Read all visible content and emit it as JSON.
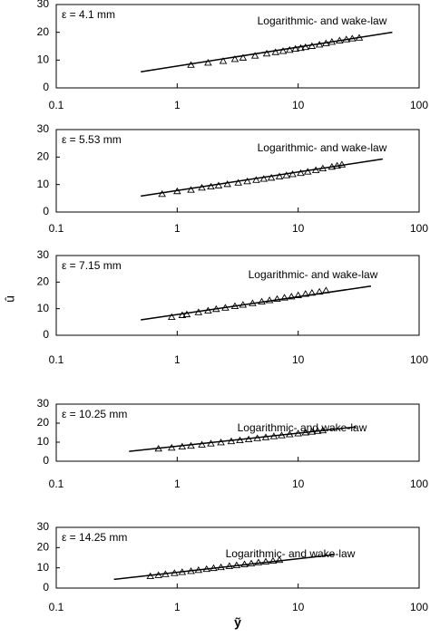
{
  "chart_data": [
    {
      "type": "scatter",
      "log_x": true,
      "xlim": [
        0.1,
        100
      ],
      "ylim": [
        0,
        30
      ],
      "xticks": [
        0.1,
        1,
        10,
        100
      ],
      "yticks": [
        0,
        10,
        20,
        30
      ],
      "label": "ε = 4.1 mm",
      "annotation": "Logarithmic- and wake-law",
      "series": [
        {
          "style": "markers",
          "marker": "triangle",
          "color": "#000000",
          "x": [
            1.3,
            1.8,
            2.4,
            3.0,
            3.5,
            4.4,
            5.5,
            6.5,
            7.5,
            8.5,
            9.5,
            10.5,
            11.5,
            13,
            15,
            17,
            19,
            22,
            25,
            28,
            32
          ],
          "values": [
            8.2,
            9.0,
            9.6,
            10.3,
            10.8,
            11.5,
            12.3,
            12.8,
            13.2,
            13.6,
            14.0,
            14.3,
            14.6,
            15.0,
            15.5,
            16.0,
            16.5,
            17.0,
            17.4,
            17.7,
            18.0
          ]
        },
        {
          "style": "line",
          "color": "#000000",
          "x": [
            0.5,
            60
          ],
          "values": [
            5.8,
            20
          ]
        }
      ]
    },
    {
      "type": "scatter",
      "log_x": true,
      "xlim": [
        0.1,
        100
      ],
      "ylim": [
        0,
        30
      ],
      "xticks": [
        0.1,
        1,
        10,
        100
      ],
      "yticks": [
        0,
        10,
        20,
        30
      ],
      "label": "ε = 5.53 mm",
      "annotation": "Logarithmic- and wake-law",
      "series": [
        {
          "style": "markers",
          "marker": "triangle",
          "color": "#000000",
          "x": [
            0.75,
            1.0,
            1.3,
            1.6,
            1.9,
            2.2,
            2.6,
            3.2,
            3.8,
            4.5,
            5.2,
            6.0,
            7.0,
            8.0,
            9.0,
            10.5,
            12,
            14,
            16,
            19,
            21,
            23
          ],
          "values": [
            6.5,
            7.5,
            8.0,
            8.8,
            9.2,
            9.6,
            10.1,
            10.6,
            11.1,
            11.6,
            12.0,
            12.4,
            12.9,
            13.3,
            13.7,
            14.1,
            14.6,
            15.2,
            15.8,
            16.4,
            16.8,
            17.2
          ]
        },
        {
          "style": "line",
          "color": "#000000",
          "x": [
            0.5,
            50
          ],
          "values": [
            5.8,
            19.3
          ]
        }
      ]
    },
    {
      "type": "scatter",
      "log_x": true,
      "xlim": [
        0.1,
        100
      ],
      "ylim": [
        0,
        30
      ],
      "xticks": [
        0.1,
        1,
        10,
        100
      ],
      "yticks": [
        0,
        10,
        20,
        30
      ],
      "label": "ε = 7.15 mm",
      "annotation": "Logarithmic- and wake-law",
      "ylabel": "û",
      "series": [
        {
          "style": "markers",
          "marker": "triangle",
          "color": "#000000",
          "x": [
            0.9,
            1.1,
            1.2,
            1.5,
            1.8,
            2.1,
            2.5,
            3.0,
            3.5,
            4.2,
            5.0,
            5.8,
            6.7,
            7.7,
            8.8,
            10,
            11.5,
            13,
            15,
            17
          ],
          "values": [
            6.8,
            7.5,
            7.8,
            8.6,
            9.2,
            9.8,
            10.3,
            10.9,
            11.4,
            12.0,
            12.6,
            13.1,
            13.6,
            14.1,
            14.5,
            15.0,
            15.5,
            15.9,
            16.3,
            16.8
          ]
        },
        {
          "style": "line",
          "color": "#000000",
          "x": [
            0.5,
            40
          ],
          "values": [
            5.8,
            18.5
          ]
        }
      ]
    },
    {
      "type": "scatter",
      "log_x": true,
      "xlim": [
        0.1,
        100
      ],
      "ylim": [
        0,
        30
      ],
      "xticks": [
        0.1,
        1,
        10,
        100
      ],
      "yticks": [
        0,
        10,
        20,
        30
      ],
      "label": "ε = 10.25 mm",
      "annotation": "Logarithmic- and wake-law",
      "series": [
        {
          "style": "markers",
          "marker": "triangle",
          "color": "#000000",
          "x": [
            0.7,
            0.9,
            1.1,
            1.3,
            1.6,
            1.9,
            2.3,
            2.8,
            3.3,
            3.9,
            4.6,
            5.4,
            6.3,
            7.3,
            8.5,
            10,
            11.5,
            13,
            14.5,
            16
          ],
          "values": [
            6.5,
            7.0,
            7.6,
            8.0,
            8.6,
            9.2,
            9.8,
            10.4,
            10.9,
            11.4,
            12.0,
            12.5,
            13.0,
            13.5,
            14.0,
            14.5,
            15.0,
            15.4,
            15.8,
            16.1
          ]
        },
        {
          "style": "line",
          "color": "#000000",
          "x": [
            0.4,
            30
          ],
          "values": [
            5.2,
            18
          ]
        }
      ]
    },
    {
      "type": "scatter",
      "log_x": true,
      "xlim": [
        0.1,
        100
      ],
      "ylim": [
        0,
        30
      ],
      "xticks": [
        0.1,
        1,
        10,
        100
      ],
      "yticks": [
        0,
        10,
        20,
        30
      ],
      "label": "ε = 14.25 mm",
      "annotation": "Logarithmic- and wake-law",
      "xlabel": "ỹ",
      "series": [
        {
          "style": "markers",
          "marker": "triangle",
          "color": "#000000",
          "x": [
            0.6,
            0.7,
            0.8,
            0.95,
            1.1,
            1.3,
            1.5,
            1.75,
            2.0,
            2.3,
            2.7,
            3.1,
            3.6,
            4.1,
            4.7,
            5.4,
            6.2,
            7.0
          ],
          "values": [
            5.8,
            6.3,
            6.8,
            7.3,
            7.8,
            8.3,
            8.8,
            9.3,
            9.8,
            10.2,
            10.8,
            11.2,
            11.7,
            12.1,
            12.6,
            13.0,
            13.4,
            13.8
          ]
        },
        {
          "style": "line",
          "color": "#000000",
          "x": [
            0.3,
            20
          ],
          "values": [
            4.3,
            16.5
          ]
        }
      ]
    }
  ]
}
